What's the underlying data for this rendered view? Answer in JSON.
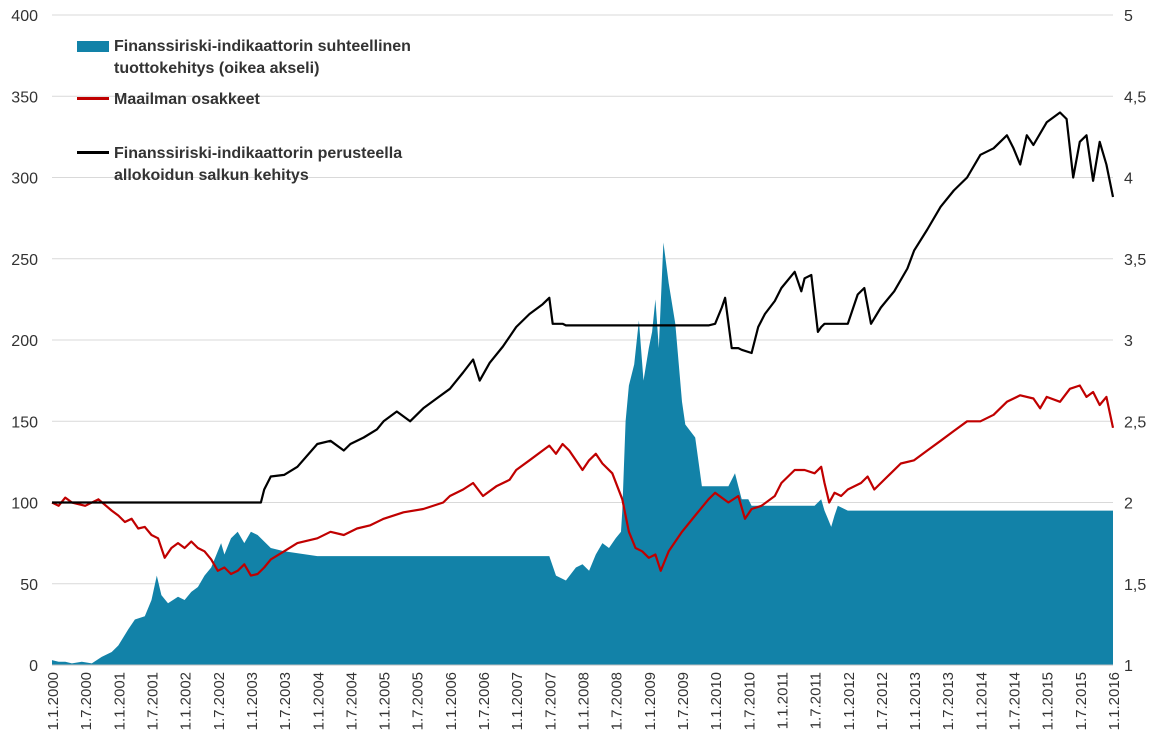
{
  "chart_data": {
    "type": "line",
    "legend": [
      {
        "label_line1": "Finanssiriski-indikaattorin suhteellinen",
        "label_line2": "tuottokehitys (oikea akseli)",
        "kind": "area",
        "color": "#1282a8"
      },
      {
        "label_line1": "Maailman osakkeet",
        "label_line2": "",
        "kind": "line",
        "color": "#c00000"
      },
      {
        "label_line1": "Finanssiriski-indikaattorin perusteella",
        "label_line2": "allokoidun salkun kehitys",
        "kind": "line",
        "color": "#000000"
      }
    ],
    "legend_position": "top-left",
    "grid": true,
    "y_left": {
      "min": 0,
      "max": 400,
      "ticks": [
        "0",
        "50",
        "100",
        "150",
        "200",
        "250",
        "300",
        "350",
        "400"
      ]
    },
    "y_right": {
      "min": 1,
      "max": 5,
      "ticks": [
        "1",
        "1,5",
        "2",
        "2,5",
        "3",
        "3,5",
        "4",
        "4,5",
        "5"
      ]
    },
    "x_range": [
      2000.0,
      2016.0
    ],
    "x_ticks": [
      "1.1.2000",
      "1.7.2000",
      "1.1.2001",
      "1.7.2001",
      "1.1.2002",
      "1.7.2002",
      "1.1.2003",
      "1.7.2003",
      "1.1.2004",
      "1.7.2004",
      "1.1.2005",
      "1.7.2005",
      "1.1.2006",
      "1.7.2006",
      "1.1.2007",
      "1.7.2007",
      "1.1.2008",
      "1.7.2008",
      "1.1.2009",
      "1.7.2009",
      "1.1.2010",
      "1.7.2010",
      "1.1.2011",
      "1.7.2011",
      "1.1.2012",
      "1.7.2012",
      "1.1.2013",
      "1.7.2013",
      "1.1.2014",
      "1.7.2014",
      "1.1.2015",
      "1.7.2015",
      "1.1.2016"
    ],
    "series": [
      {
        "name": "Finanssiriski-indikaattorin suhteellinen tuottokehitys (oikea akseli)",
        "axis": "right",
        "kind": "area",
        "color": "#1282a8",
        "x": [
          2000.0,
          2000.1,
          2000.2,
          2000.3,
          2000.45,
          2000.6,
          2000.75,
          2000.9,
          2001.0,
          2001.15,
          2001.25,
          2001.4,
          2001.5,
          2001.58,
          2001.65,
          2001.75,
          2001.9,
          2002.0,
          2002.1,
          2002.2,
          2002.3,
          2002.4,
          2002.5,
          2002.55,
          2002.6,
          2002.7,
          2002.8,
          2002.9,
          2003.0,
          2003.1,
          2003.2,
          2003.3,
          2003.5,
          2004.0,
          2005.0,
          2006.0,
          2007.0,
          2007.5,
          2007.6,
          2007.75,
          2007.9,
          2008.0,
          2008.1,
          2008.2,
          2008.3,
          2008.4,
          2008.5,
          2008.58,
          2008.6,
          2008.65,
          2008.7,
          2008.78,
          2008.85,
          2008.92,
          2009.0,
          2009.05,
          2009.1,
          2009.15,
          2009.22,
          2009.3,
          2009.4,
          2009.5,
          2009.55,
          2009.7,
          2009.8,
          2009.9,
          2010.0,
          2010.2,
          2010.3,
          2010.35,
          2010.4,
          2010.5,
          2010.55,
          2011.0,
          2011.5,
          2011.6,
          2011.65,
          2011.7,
          2011.75,
          2011.8,
          2011.85,
          2012.0,
          2013.0,
          2014.0,
          2015.0,
          2016.0
        ],
        "values": [
          1.03,
          1.02,
          1.02,
          1.01,
          1.02,
          1.01,
          1.05,
          1.08,
          1.12,
          1.22,
          1.28,
          1.3,
          1.4,
          1.55,
          1.43,
          1.38,
          1.42,
          1.4,
          1.45,
          1.48,
          1.55,
          1.6,
          1.7,
          1.75,
          1.68,
          1.78,
          1.82,
          1.75,
          1.82,
          1.8,
          1.76,
          1.72,
          1.7,
          1.67,
          1.67,
          1.67,
          1.67,
          1.67,
          1.55,
          1.52,
          1.6,
          1.62,
          1.58,
          1.68,
          1.75,
          1.72,
          1.78,
          1.82,
          1.95,
          2.5,
          2.72,
          2.85,
          3.12,
          2.75,
          2.95,
          3.05,
          3.25,
          2.95,
          3.6,
          3.35,
          3.1,
          2.62,
          2.48,
          2.4,
          2.1,
          2.1,
          2.1,
          2.1,
          2.18,
          2.1,
          2.02,
          2.02,
          1.98,
          1.98,
          1.98,
          2.02,
          1.95,
          1.9,
          1.85,
          1.92,
          1.98,
          1.95,
          1.95,
          1.95,
          1.95,
          1.95
        ]
      },
      {
        "name": "Maailman osakkeet",
        "axis": "left",
        "kind": "line",
        "color": "#c00000",
        "x": [
          2000.0,
          2000.1,
          2000.2,
          2000.3,
          2000.5,
          2000.7,
          2000.9,
          2001.0,
          2001.1,
          2001.2,
          2001.3,
          2001.4,
          2001.5,
          2001.6,
          2001.7,
          2001.8,
          2001.9,
          2002.0,
          2002.1,
          2002.2,
          2002.3,
          2002.4,
          2002.5,
          2002.6,
          2002.7,
          2002.8,
          2002.9,
          2003.0,
          2003.1,
          2003.2,
          2003.3,
          2003.5,
          2003.7,
          2004.0,
          2004.2,
          2004.4,
          2004.6,
          2004.8,
          2005.0,
          2005.3,
          2005.6,
          2005.9,
          2006.0,
          2006.2,
          2006.35,
          2006.5,
          2006.7,
          2006.9,
          2007.0,
          2007.2,
          2007.4,
          2007.5,
          2007.6,
          2007.7,
          2007.8,
          2007.9,
          2008.0,
          2008.1,
          2008.2,
          2008.3,
          2008.45,
          2008.6,
          2008.7,
          2008.8,
          2008.9,
          2009.0,
          2009.1,
          2009.18,
          2009.3,
          2009.5,
          2009.7,
          2009.9,
          2010.0,
          2010.2,
          2010.35,
          2010.45,
          2010.55,
          2010.7,
          2010.9,
          2011.0,
          2011.2,
          2011.35,
          2011.5,
          2011.6,
          2011.65,
          2011.72,
          2011.8,
          2011.9,
          2012.0,
          2012.2,
          2012.3,
          2012.4,
          2012.6,
          2012.8,
          2013.0,
          2013.2,
          2013.4,
          2013.6,
          2013.8,
          2014.0,
          2014.2,
          2014.4,
          2014.6,
          2014.8,
          2014.9,
          2015.0,
          2015.2,
          2015.35,
          2015.5,
          2015.6,
          2015.7,
          2015.8,
          2015.9,
          2016.0
        ],
        "values": [
          100,
          98,
          103,
          100,
          98,
          102,
          95,
          92,
          88,
          90,
          84,
          85,
          80,
          78,
          66,
          72,
          75,
          72,
          76,
          72,
          70,
          65,
          58,
          60,
          56,
          58,
          62,
          55,
          56,
          60,
          65,
          70,
          75,
          78,
          82,
          80,
          84,
          86,
          90,
          94,
          96,
          100,
          104,
          108,
          112,
          104,
          110,
          114,
          120,
          126,
          132,
          135,
          130,
          136,
          132,
          126,
          120,
          126,
          130,
          124,
          118,
          102,
          82,
          72,
          70,
          66,
          68,
          58,
          70,
          82,
          92,
          102,
          106,
          100,
          104,
          90,
          96,
          98,
          104,
          112,
          120,
          120,
          118,
          122,
          112,
          100,
          106,
          104,
          108,
          112,
          116,
          108,
          116,
          124,
          126,
          132,
          138,
          144,
          150,
          150,
          154,
          162,
          166,
          164,
          158,
          165,
          162,
          170,
          172,
          165,
          168,
          160,
          165,
          146
        ]
      },
      {
        "name": "Finanssiriski-indikaattorin perusteella allokoidun salkun kehitys",
        "axis": "left",
        "kind": "line",
        "color": "#000000",
        "x": [
          2000.0,
          2003.15,
          2003.2,
          2003.3,
          2003.5,
          2003.7,
          2004.0,
          2004.2,
          2004.4,
          2004.5,
          2004.7,
          2004.9,
          2005.0,
          2005.2,
          2005.4,
          2005.6,
          2005.8,
          2006.0,
          2006.2,
          2006.35,
          2006.45,
          2006.6,
          2006.8,
          2007.0,
          2007.2,
          2007.4,
          2007.5,
          2007.55,
          2007.7,
          2007.75,
          2008.0,
          2009.0,
          2009.5,
          2009.9,
          2010.0,
          2010.1,
          2010.15,
          2010.25,
          2010.35,
          2010.4,
          2010.55,
          2010.65,
          2010.75,
          2010.9,
          2011.0,
          2011.2,
          2011.3,
          2011.35,
          2011.45,
          2011.55,
          2011.6,
          2011.65,
          2011.75,
          2011.8,
          2012.0,
          2012.15,
          2012.25,
          2012.35,
          2012.5,
          2012.7,
          2012.9,
          2013.0,
          2013.2,
          2013.4,
          2013.6,
          2013.8,
          2014.0,
          2014.2,
          2014.4,
          2014.5,
          2014.6,
          2014.7,
          2014.8,
          2015.0,
          2015.2,
          2015.3,
          2015.4,
          2015.5,
          2015.6,
          2015.7,
          2015.8,
          2015.9,
          2016.0
        ],
        "values": [
          100,
          100,
          108,
          116,
          117,
          122,
          136,
          138,
          132,
          136,
          140,
          145,
          150,
          156,
          150,
          158,
          164,
          170,
          180,
          188,
          175,
          186,
          196,
          208,
          216,
          222,
          226,
          210,
          210,
          209,
          209,
          209,
          209,
          209,
          210,
          220,
          226,
          195,
          195,
          194,
          192,
          208,
          216,
          224,
          232,
          242,
          230,
          238,
          240,
          205,
          208,
          210,
          210,
          210,
          210,
          228,
          232,
          210,
          220,
          230,
          244,
          255,
          268,
          282,
          292,
          300,
          314,
          318,
          326,
          318,
          308,
          326,
          320,
          334,
          340,
          336,
          300,
          322,
          326,
          298,
          322,
          308,
          288
        ]
      }
    ]
  }
}
